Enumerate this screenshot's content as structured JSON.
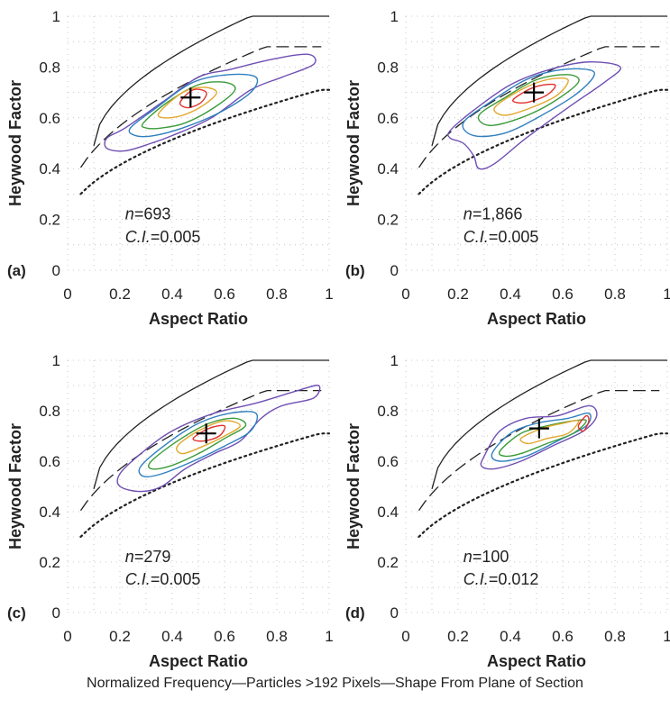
{
  "caption": "Normalized Frequency—Particles >192 Pixels—Shape From Plane of Section",
  "chart_data": [
    {
      "type": "line",
      "panel_label": "(a)",
      "xlabel": "Aspect Ratio",
      "ylabel": "Heywood Factor",
      "xlim": [
        0,
        1
      ],
      "ylim": [
        0,
        1
      ],
      "xticks": [
        "0",
        "0.2",
        "0.4",
        "0.6",
        "0.8",
        "1"
      ],
      "yticks": [
        "0",
        "0.2",
        "0.4",
        "0.6",
        "0.8",
        "1"
      ],
      "grid": true,
      "n_label": "n",
      "n_value": "=693",
      "ci_label": "C.I.",
      "ci_value": "=0.005",
      "centroid": [
        0.47,
        0.68
      ],
      "contours": [
        {
          "color": "#6f4fb3",
          "points": [
            [
              0.15,
              0.52
            ],
            [
              0.22,
              0.56
            ],
            [
              0.36,
              0.66
            ],
            [
              0.5,
              0.76
            ],
            [
              0.62,
              0.79
            ],
            [
              0.78,
              0.83
            ],
            [
              0.92,
              0.85
            ],
            [
              0.94,
              0.81
            ],
            [
              0.82,
              0.76
            ],
            [
              0.7,
              0.71
            ],
            [
              0.55,
              0.6
            ],
            [
              0.4,
              0.53
            ],
            [
              0.32,
              0.5
            ],
            [
              0.22,
              0.47
            ],
            [
              0.15,
              0.48
            ]
          ]
        },
        {
          "color": "#2f7fbf",
          "points": [
            [
              0.24,
              0.56
            ],
            [
              0.34,
              0.64
            ],
            [
              0.48,
              0.74
            ],
            [
              0.62,
              0.77
            ],
            [
              0.72,
              0.76
            ],
            [
              0.7,
              0.7
            ],
            [
              0.58,
              0.62
            ],
            [
              0.44,
              0.56
            ],
            [
              0.33,
              0.53
            ],
            [
              0.26,
              0.53
            ]
          ]
        },
        {
          "color": "#3a9b3a",
          "points": [
            [
              0.29,
              0.58
            ],
            [
              0.38,
              0.66
            ],
            [
              0.5,
              0.73
            ],
            [
              0.6,
              0.74
            ],
            [
              0.64,
              0.71
            ],
            [
              0.56,
              0.64
            ],
            [
              0.45,
              0.58
            ],
            [
              0.36,
              0.56
            ],
            [
              0.3,
              0.56
            ]
          ]
        },
        {
          "color": "#e1a72b",
          "points": [
            [
              0.35,
              0.62
            ],
            [
              0.44,
              0.7
            ],
            [
              0.52,
              0.72
            ],
            [
              0.57,
              0.7
            ],
            [
              0.52,
              0.65
            ],
            [
              0.44,
              0.61
            ],
            [
              0.37,
              0.6
            ]
          ]
        },
        {
          "color": "#e0302b",
          "points": [
            [
              0.43,
              0.66
            ],
            [
              0.48,
              0.71
            ],
            [
              0.53,
              0.7
            ],
            [
              0.51,
              0.66
            ],
            [
              0.46,
              0.64
            ]
          ]
        }
      ]
    },
    {
      "type": "line",
      "panel_label": "(b)",
      "xlabel": "Aspect Ratio",
      "ylabel": "Heywood Factor",
      "xlim": [
        0,
        1
      ],
      "ylim": [
        0,
        1
      ],
      "xticks": [
        "0",
        "0.2",
        "0.4",
        "0.6",
        "0.8",
        "1"
      ],
      "yticks": [
        "0",
        "0.2",
        "0.4",
        "0.6",
        "0.8",
        "1"
      ],
      "grid": true,
      "n_label": "n",
      "n_value": "=1,866",
      "ci_label": "C.I.",
      "ci_value": "=0.005",
      "centroid": [
        0.49,
        0.7
      ],
      "contours": [
        {
          "color": "#6f4fb3",
          "points": [
            [
              0.17,
              0.55
            ],
            [
              0.26,
              0.63
            ],
            [
              0.4,
              0.73
            ],
            [
              0.55,
              0.79
            ],
            [
              0.7,
              0.82
            ],
            [
              0.82,
              0.8
            ],
            [
              0.76,
              0.74
            ],
            [
              0.62,
              0.64
            ],
            [
              0.46,
              0.52
            ],
            [
              0.34,
              0.42
            ],
            [
              0.28,
              0.4
            ],
            [
              0.26,
              0.45
            ],
            [
              0.22,
              0.5
            ],
            [
              0.17,
              0.52
            ]
          ]
        },
        {
          "color": "#2f7fbf",
          "points": [
            [
              0.22,
              0.58
            ],
            [
              0.32,
              0.66
            ],
            [
              0.46,
              0.75
            ],
            [
              0.6,
              0.79
            ],
            [
              0.72,
              0.78
            ],
            [
              0.66,
              0.7
            ],
            [
              0.52,
              0.61
            ],
            [
              0.38,
              0.54
            ],
            [
              0.26,
              0.53
            ]
          ]
        },
        {
          "color": "#3a9b3a",
          "points": [
            [
              0.28,
              0.61
            ],
            [
              0.38,
              0.68
            ],
            [
              0.5,
              0.75
            ],
            [
              0.62,
              0.77
            ],
            [
              0.66,
              0.74
            ],
            [
              0.56,
              0.66
            ],
            [
              0.44,
              0.6
            ],
            [
              0.32,
              0.57
            ]
          ]
        },
        {
          "color": "#e1a72b",
          "points": [
            [
              0.34,
              0.64
            ],
            [
              0.44,
              0.71
            ],
            [
              0.54,
              0.75
            ],
            [
              0.62,
              0.75
            ],
            [
              0.58,
              0.69
            ],
            [
              0.48,
              0.64
            ],
            [
              0.38,
              0.61
            ]
          ]
        },
        {
          "color": "#e0302b",
          "points": [
            [
              0.41,
              0.67
            ],
            [
              0.49,
              0.72
            ],
            [
              0.57,
              0.73
            ],
            [
              0.54,
              0.69
            ],
            [
              0.46,
              0.66
            ]
          ]
        }
      ]
    },
    {
      "type": "line",
      "panel_label": "(c)",
      "xlabel": "Aspect Ratio",
      "ylabel": "Heywood Factor",
      "xlim": [
        0,
        1
      ],
      "ylim": [
        0,
        1
      ],
      "xticks": [
        "0",
        "0.2",
        "0.4",
        "0.6",
        "0.8",
        "1"
      ],
      "yticks": [
        "0",
        "0.2",
        "0.4",
        "0.6",
        "0.8",
        "1"
      ],
      "grid": true,
      "n_label": "n",
      "n_value": "=279",
      "ci_label": "C.I.",
      "ci_value": "=0.005",
      "centroid": [
        0.53,
        0.71
      ],
      "contours": [
        {
          "color": "#6f4fb3",
          "points": [
            [
              0.2,
              0.55
            ],
            [
              0.28,
              0.63
            ],
            [
              0.4,
              0.72
            ],
            [
              0.56,
              0.79
            ],
            [
              0.72,
              0.83
            ],
            [
              0.88,
              0.88
            ],
            [
              0.96,
              0.9
            ],
            [
              0.94,
              0.85
            ],
            [
              0.82,
              0.82
            ],
            [
              0.74,
              0.77
            ],
            [
              0.66,
              0.68
            ],
            [
              0.56,
              0.63
            ],
            [
              0.45,
              0.57
            ],
            [
              0.36,
              0.5
            ],
            [
              0.28,
              0.48
            ],
            [
              0.2,
              0.5
            ]
          ]
        },
        {
          "color": "#2f7fbf",
          "points": [
            [
              0.28,
              0.58
            ],
            [
              0.38,
              0.67
            ],
            [
              0.5,
              0.75
            ],
            [
              0.62,
              0.79
            ],
            [
              0.72,
              0.79
            ],
            [
              0.7,
              0.72
            ],
            [
              0.6,
              0.66
            ],
            [
              0.48,
              0.6
            ],
            [
              0.36,
              0.55
            ],
            [
              0.29,
              0.54
            ]
          ]
        },
        {
          "color": "#3a9b3a",
          "points": [
            [
              0.32,
              0.6
            ],
            [
              0.42,
              0.68
            ],
            [
              0.54,
              0.75
            ],
            [
              0.64,
              0.77
            ],
            [
              0.68,
              0.74
            ],
            [
              0.6,
              0.69
            ],
            [
              0.5,
              0.63
            ],
            [
              0.39,
              0.58
            ],
            [
              0.32,
              0.57
            ]
          ]
        },
        {
          "color": "#e1a72b",
          "points": [
            [
              0.42,
              0.66
            ],
            [
              0.5,
              0.72
            ],
            [
              0.6,
              0.76
            ],
            [
              0.66,
              0.74
            ],
            [
              0.6,
              0.7
            ],
            [
              0.52,
              0.66
            ],
            [
              0.44,
              0.63
            ]
          ]
        },
        {
          "color": "#e0302b",
          "points": [
            [
              0.48,
              0.69
            ],
            [
              0.54,
              0.73
            ],
            [
              0.6,
              0.74
            ],
            [
              0.58,
              0.7
            ],
            [
              0.52,
              0.68
            ]
          ]
        }
      ]
    },
    {
      "type": "line",
      "panel_label": "(d)",
      "xlabel": "Aspect Ratio",
      "ylabel": "Heywood Factor",
      "xlim": [
        0,
        1
      ],
      "ylim": [
        0,
        1
      ],
      "xticks": [
        "0",
        "0.2",
        "0.4",
        "0.6",
        "0.8",
        "1"
      ],
      "yticks": [
        "0",
        "0.2",
        "0.4",
        "0.6",
        "0.8",
        "1"
      ],
      "grid": true,
      "n_label": "n",
      "n_value": "=100",
      "ci_label": "C.I.",
      "ci_value": "=0.012",
      "centroid": [
        0.51,
        0.73
      ],
      "contours": [
        {
          "color": "#6f4fb3",
          "points": [
            [
              0.3,
              0.62
            ],
            [
              0.36,
              0.72
            ],
            [
              0.46,
              0.77
            ],
            [
              0.58,
              0.78
            ],
            [
              0.7,
              0.82
            ],
            [
              0.73,
              0.78
            ],
            [
              0.68,
              0.72
            ],
            [
              0.56,
              0.66
            ],
            [
              0.44,
              0.6
            ],
            [
              0.34,
              0.57
            ],
            [
              0.29,
              0.58
            ]
          ]
        },
        {
          "color": "#2f7fbf",
          "points": [
            [
              0.33,
              0.63
            ],
            [
              0.4,
              0.71
            ],
            [
              0.5,
              0.75
            ],
            [
              0.62,
              0.77
            ],
            [
              0.7,
              0.79
            ],
            [
              0.69,
              0.74
            ],
            [
              0.58,
              0.68
            ],
            [
              0.46,
              0.62
            ],
            [
              0.36,
              0.6
            ]
          ]
        },
        {
          "color": "#3a9b3a",
          "points": [
            [
              0.36,
              0.64
            ],
            [
              0.44,
              0.71
            ],
            [
              0.54,
              0.74
            ],
            [
              0.64,
              0.76
            ],
            [
              0.69,
              0.76
            ],
            [
              0.64,
              0.71
            ],
            [
              0.54,
              0.67
            ],
            [
              0.44,
              0.63
            ],
            [
              0.38,
              0.62
            ]
          ]
        },
        {
          "color": "#e1a72b",
          "points": [
            [
              0.44,
              0.69
            ],
            [
              0.52,
              0.73
            ],
            [
              0.6,
              0.75
            ],
            [
              0.66,
              0.76
            ],
            [
              0.62,
              0.71
            ],
            [
              0.54,
              0.69
            ],
            [
              0.47,
              0.67
            ]
          ]
        },
        {
          "color": "#e0302b",
          "points": [
            [
              0.66,
              0.74
            ],
            [
              0.69,
              0.78
            ],
            [
              0.7,
              0.76
            ],
            [
              0.68,
              0.72
            ]
          ]
        }
      ]
    }
  ]
}
